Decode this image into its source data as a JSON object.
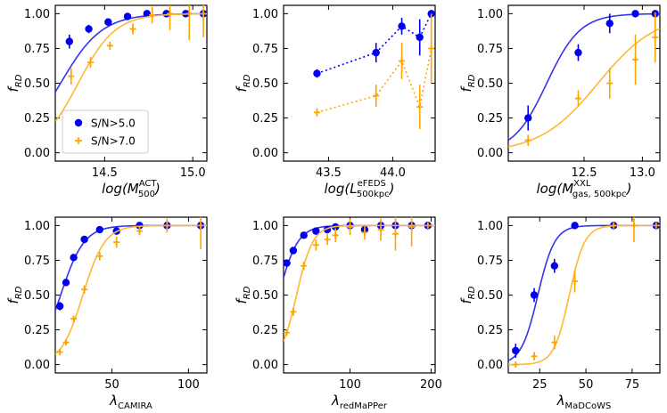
{
  "colors": {
    "high_snr": "#0000ee",
    "low_snr": "#ffa500",
    "fit_blue": "#3333ee",
    "fit_orange": "#ffb833"
  },
  "legend": {
    "location": "lower-left of first panel",
    "entries": [
      {
        "label": "S/N>5.0",
        "marker": "circle",
        "color": "#0000ee"
      },
      {
        "label": "S/N>7.0",
        "marker": "plus",
        "color": "#ffa500"
      }
    ]
  },
  "chart_data": [
    {
      "type": "scatter",
      "panel": "ACT",
      "ylabel_main": "f",
      "ylabel_sub": "RD",
      "xlabel": {
        "pre": "log(M",
        "sup": "ACT",
        "sub": "500",
        "post": ")"
      },
      "xlim": [
        14.22,
        15.08
      ],
      "ylim": [
        -0.06,
        1.06
      ],
      "xticks": [
        14.5,
        15.0
      ],
      "xtick_labels": [
        "14.5",
        "15.0"
      ],
      "yticks": [
        0.0,
        0.25,
        0.5,
        0.75,
        1.0
      ],
      "ytick_labels": [
        "0.00",
        "0.25",
        "0.50",
        "0.75",
        "1.00"
      ],
      "fit": "sigmoid",
      "series": [
        {
          "name": "S/N>5.0",
          "color": "#0000ee",
          "marker": "circle",
          "x": [
            14.3,
            14.41,
            14.52,
            14.63,
            14.74,
            14.85,
            14.96,
            15.06
          ],
          "y": [
            0.8,
            0.89,
            0.94,
            0.98,
            1.0,
            1.0,
            1.0,
            1.0
          ],
          "err": [
            0.05,
            0.03,
            0.02,
            0.01,
            0.0,
            0.0,
            0.0,
            0.0
          ],
          "fit": {
            "x0": 14.25,
            "k": 8.5
          }
        },
        {
          "name": "S/N>7.0",
          "color": "#ffa500",
          "marker": "plus",
          "x": [
            14.31,
            14.42,
            14.53,
            14.66,
            14.77,
            14.87,
            14.98,
            15.06
          ],
          "y": [
            0.55,
            0.65,
            0.77,
            0.89,
            0.99,
            1.0,
            1.0,
            1.0
          ],
          "err": [
            0.06,
            0.04,
            0.03,
            0.04,
            0.06,
            0.12,
            0.19,
            0.17
          ],
          "fit": {
            "x0": 14.35,
            "k": 9.5
          }
        }
      ]
    },
    {
      "type": "line",
      "panel": "eFEDS",
      "ylabel_main": "f",
      "ylabel_sub": "RD",
      "xlabel": {
        "pre": "log(L",
        "sup": "eFEDS",
        "sub": "500kpc",
        "post": ")"
      },
      "xlim": [
        43.15,
        44.33
      ],
      "ylim": [
        -0.06,
        1.06
      ],
      "xticks": [
        43.5,
        44.0
      ],
      "xtick_labels": [
        "43.5",
        "44.0"
      ],
      "yticks": [
        0.0,
        0.25,
        0.5,
        0.75,
        1.0
      ],
      "ytick_labels": [
        "0.00",
        "0.25",
        "0.50",
        "0.75",
        "1.00"
      ],
      "fit": "dotted",
      "series": [
        {
          "name": "S/N>5.0",
          "color": "#0000ee",
          "marker": "circle",
          "x": [
            43.41,
            43.87,
            44.07,
            44.21,
            44.3
          ],
          "y": [
            0.57,
            0.72,
            0.91,
            0.83,
            1.0
          ],
          "err": [
            0.03,
            0.07,
            0.06,
            0.13,
            0.0
          ]
        },
        {
          "name": "S/N>7.0",
          "color": "#ffa500",
          "marker": "plus",
          "x": [
            43.41,
            43.87,
            44.07,
            44.21,
            44.3
          ],
          "y": [
            0.29,
            0.41,
            0.66,
            0.33,
            0.75
          ],
          "err": [
            0.03,
            0.08,
            0.13,
            0.16,
            0.25
          ]
        }
      ]
    },
    {
      "type": "scatter",
      "panel": "XXL",
      "ylabel_main": "f",
      "ylabel_sub": "RD",
      "xlabel": {
        "pre": "log(M",
        "sup": "XXL",
        "sub": "gas, 500kpc",
        "post": ")"
      },
      "xlim": [
        11.85,
        13.15
      ],
      "ylim": [
        -0.06,
        1.06
      ],
      "xticks": [
        12.5,
        13.0
      ],
      "xtick_labels": [
        "12.5",
        "13.0"
      ],
      "yticks": [
        0.0,
        0.25,
        0.5,
        0.75,
        1.0
      ],
      "ytick_labels": [
        "0.00",
        "0.25",
        "0.50",
        "0.75",
        "1.00"
      ],
      "fit": "sigmoid",
      "series": [
        {
          "name": "S/N>5.0",
          "color": "#0000ee",
          "marker": "circle",
          "x": [
            12.02,
            12.45,
            12.72,
            12.94,
            13.11
          ],
          "y": [
            0.25,
            0.72,
            0.93,
            1.0,
            1.0
          ],
          "err": [
            0.09,
            0.06,
            0.07,
            0.0,
            0.0
          ],
          "fit": {
            "x0": 12.18,
            "k": 7.0
          }
        },
        {
          "name": "S/N>7.0",
          "color": "#ffa500",
          "marker": "plus",
          "x": [
            12.02,
            12.45,
            12.72,
            12.94,
            13.11
          ],
          "y": [
            0.09,
            0.39,
            0.5,
            0.67,
            0.83
          ],
          "err": [
            0.04,
            0.06,
            0.11,
            0.18,
            0.18
          ],
          "fit": {
            "x0": 12.62,
            "k": 4.0
          }
        }
      ]
    },
    {
      "type": "scatter",
      "panel": "CAMIRA",
      "ylabel_main": "f",
      "ylabel_sub": "RD",
      "xlabel": {
        "pre": "λ",
        "sup": "",
        "sub": "CAMIRA",
        "post": ""
      },
      "xlim": [
        13,
        112
      ],
      "ylim": [
        -0.06,
        1.06
      ],
      "xticks": [
        50,
        100
      ],
      "xtick_labels": [
        "50",
        "100"
      ],
      "yticks": [
        0.0,
        0.25,
        0.5,
        0.75,
        1.0
      ],
      "ytick_labels": [
        "0.00",
        "0.25",
        "0.50",
        "0.75",
        "1.00"
      ],
      "fit": "sigmoid",
      "series": [
        {
          "name": "S/N>5.0",
          "color": "#0000ee",
          "marker": "circle",
          "x": [
            16,
            20,
            25,
            32,
            42,
            53,
            68,
            86,
            108
          ],
          "y": [
            0.42,
            0.59,
            0.77,
            0.9,
            0.97,
            0.96,
            1.0,
            1.0,
            1.0
          ],
          "err": [
            0.03,
            0.02,
            0.02,
            0.02,
            0.01,
            0.02,
            0.0,
            0.0,
            0.0
          ],
          "fit": {
            "x0": 16.5,
            "k": 0.13
          }
        },
        {
          "name": "S/N>7.0",
          "color": "#ffa500",
          "marker": "plus",
          "x": [
            16,
            20,
            25,
            32,
            42,
            53,
            68,
            86,
            108
          ],
          "y": [
            0.09,
            0.16,
            0.33,
            0.54,
            0.78,
            0.88,
            0.96,
            1.0,
            1.0
          ],
          "err": [
            0.02,
            0.02,
            0.02,
            0.03,
            0.03,
            0.04,
            0.03,
            0.05,
            0.17
          ],
          "fit": {
            "x0": 31,
            "k": 0.14
          }
        }
      ]
    },
    {
      "type": "scatter",
      "panel": "redMaPPer",
      "ylabel_main": "f",
      "ylabel_sub": "RD",
      "xlabel": {
        "pre": "λ",
        "sup": "",
        "sub": "redMaPPer",
        "post": ""
      },
      "xlim": [
        18,
        205
      ],
      "ylim": [
        -0.06,
        1.06
      ],
      "xticks": [
        100,
        200
      ],
      "xtick_labels": [
        "100",
        "200"
      ],
      "yticks": [
        0.0,
        0.25,
        0.5,
        0.75,
        1.0
      ],
      "ytick_labels": [
        "0.00",
        "0.25",
        "0.50",
        "0.75",
        "1.00"
      ],
      "fit": "sigmoid",
      "series": [
        {
          "name": "S/N>5.0",
          "color": "#0000ee",
          "marker": "circle",
          "x": [
            22,
            30,
            43,
            58,
            72,
            82,
            100,
            118,
            138,
            156,
            176,
            196
          ],
          "y": [
            0.73,
            0.82,
            0.93,
            0.96,
            0.97,
            0.99,
            1.0,
            0.97,
            1.0,
            1.0,
            1.0,
            1.0
          ],
          "err": [
            0.02,
            0.02,
            0.01,
            0.01,
            0.02,
            0.02,
            0.0,
            0.02,
            0.0,
            0.0,
            0.0,
            0.0
          ],
          "fit": {
            "x0": 12,
            "k": 0.085
          }
        },
        {
          "name": "S/N>7.0",
          "color": "#ffa500",
          "marker": "plus",
          "x": [
            22,
            30,
            43,
            58,
            72,
            82,
            100,
            118,
            138,
            156,
            176,
            196
          ],
          "y": [
            0.23,
            0.38,
            0.71,
            0.86,
            0.9,
            0.93,
            0.99,
            0.95,
            0.97,
            0.94,
            0.99,
            1.0
          ],
          "err": [
            0.02,
            0.03,
            0.03,
            0.04,
            0.04,
            0.05,
            0.06,
            0.05,
            0.08,
            0.12,
            0.14,
            0.02
          ],
          "fit": {
            "x0": 34,
            "k": 0.1
          }
        }
      ]
    },
    {
      "type": "scatter",
      "panel": "MaDCoWS",
      "ylabel_main": "f",
      "ylabel_sub": "RD",
      "xlabel": {
        "pre": "λ",
        "sup": "",
        "sub": "MaDCoWS",
        "post": ""
      },
      "xlim": [
        8,
        90
      ],
      "ylim": [
        -0.06,
        1.06
      ],
      "xticks": [
        25,
        50,
        75
      ],
      "xtick_labels": [
        "25",
        "50",
        "75"
      ],
      "yticks": [
        0.0,
        0.25,
        0.5,
        0.75,
        1.0
      ],
      "ytick_labels": [
        "0.00",
        "0.25",
        "0.50",
        "0.75",
        "1.00"
      ],
      "fit": "sigmoid",
      "series": [
        {
          "name": "S/N>5.0",
          "color": "#0000ee",
          "marker": "circle",
          "x": [
            12,
            22,
            33,
            44,
            65,
            88
          ],
          "y": [
            0.1,
            0.5,
            0.71,
            1.0,
            1.0,
            1.0
          ],
          "err": [
            0.05,
            0.05,
            0.05,
            0.0,
            0.0,
            0.0
          ],
          "fit": {
            "x0": 24,
            "k": 0.22
          }
        },
        {
          "name": "S/N>7.0",
          "color": "#ffa500",
          "marker": "plus",
          "x": [
            12,
            22,
            33,
            44,
            65,
            76,
            88
          ],
          "y": [
            0.0,
            0.06,
            0.16,
            0.6,
            1.0,
            1.0,
            1.0
          ],
          "err": [
            0.02,
            0.03,
            0.05,
            0.08,
            0.01,
            0.12,
            0.0
          ],
          "fit": {
            "x0": 41,
            "k": 0.24
          }
        }
      ]
    }
  ]
}
